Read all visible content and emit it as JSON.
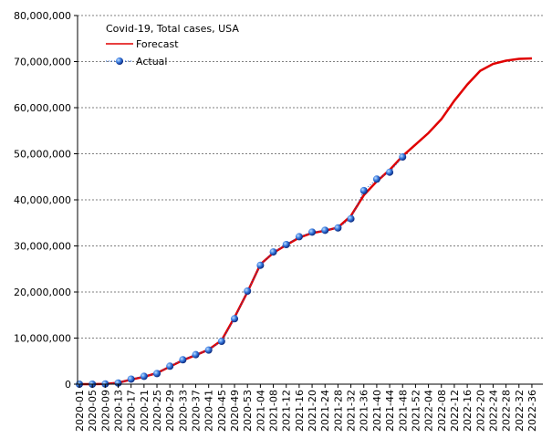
{
  "chart_data": {
    "type": "line",
    "title": "Covid-19, Total cases, USA",
    "categories": [
      "2020-01",
      "2020-05",
      "2020-09",
      "2020-13",
      "2020-17",
      "2020-21",
      "2020-25",
      "2020-29",
      "2020-33",
      "2020-37",
      "2020-41",
      "2020-45",
      "2020-49",
      "2020-53",
      "2021-04",
      "2021-08",
      "2021-12",
      "2021-16",
      "2021-20",
      "2021-24",
      "2021-28",
      "2021-32",
      "2021-36",
      "2021-40",
      "2021-44",
      "2021-48",
      "2021-52",
      "2022-04",
      "2022-08",
      "2022-12",
      "2022-16",
      "2022-20",
      "2022-24",
      "2022-28",
      "2022-32",
      "2022-36"
    ],
    "series": [
      {
        "name": "Forecast",
        "color": "#e00000",
        "values": [
          0,
          0,
          50000,
          300000,
          1000000,
          1600000,
          2400000,
          3800000,
          5200000,
          6300000,
          7500000,
          9500000,
          14500000,
          20000000,
          26000000,
          28500000,
          30200000,
          31800000,
          32800000,
          33300000,
          34000000,
          36500000,
          41000000,
          44000000,
          46500000,
          49500000,
          52000000,
          54500000,
          57500000,
          61500000,
          65000000,
          68000000,
          69500000,
          70200000,
          70600000,
          70700000
        ]
      },
      {
        "name": "Actual",
        "color": "#1f5fd0",
        "values": [
          0,
          0,
          50000,
          250000,
          1100000,
          1700000,
          2300000,
          3900000,
          5300000,
          6400000,
          7400000,
          9300000,
          14200000,
          20200000,
          25800000,
          28700000,
          30300000,
          32000000,
          33000000,
          33400000,
          33900000,
          35900000,
          42000000,
          44500000,
          46000000,
          49300000,
          null,
          null,
          null,
          null,
          null,
          null,
          null,
          null,
          null,
          null
        ]
      }
    ],
    "ylim": [
      0,
      80000000
    ],
    "yticks": [
      0,
      {
        "value": 10000000,
        "label": "10,000,000"
      },
      {
        "value": 20000000,
        "label": "20,000,000"
      },
      {
        "value": 30000000,
        "label": "30,000,000"
      },
      {
        "value": 40000000,
        "label": "40,000,000"
      },
      {
        "value": 50000000,
        "label": "50,000,000"
      },
      {
        "value": 60000000,
        "label": "60,000,000"
      },
      {
        "value": 70000000,
        "label": "70,000,000"
      },
      {
        "value": 80000000,
        "label": "80,000,000"
      }
    ],
    "grid": true
  }
}
